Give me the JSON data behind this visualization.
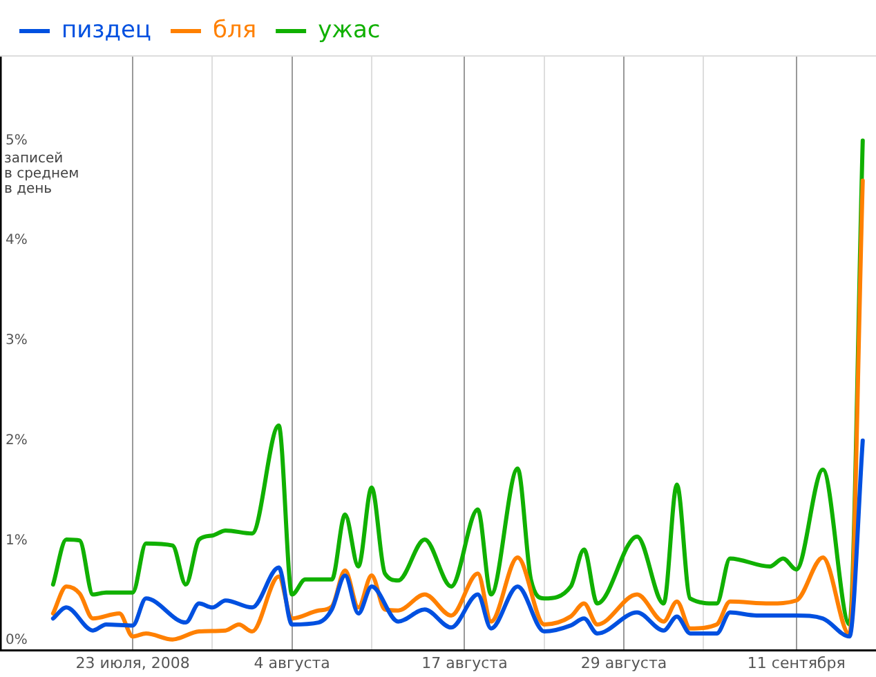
{
  "chart_data": {
    "type": "line",
    "ylabel": "записей\nв среднем\nв день",
    "xlim": [
      "2008-07-13",
      "2008-09-17"
    ],
    "xticks": [
      {
        "value": "2008-07-23",
        "label": "23 июля, 2008"
      },
      {
        "value": "2008-07-29",
        "label": null
      },
      {
        "value": "2008-08-04",
        "label": "4 августа"
      },
      {
        "value": "2008-08-10",
        "label": null
      },
      {
        "value": "2008-08-17",
        "label": "17 августа"
      },
      {
        "value": "2008-08-23",
        "label": null
      },
      {
        "value": "2008-08-29",
        "label": "29 августа"
      },
      {
        "value": "2008-09-04",
        "label": null
      },
      {
        "value": "2008-09-11",
        "label": "11 сентября"
      }
    ],
    "ylim": [
      -0.1,
      5.84
    ],
    "yticks": [
      {
        "value": 0,
        "label": "0%"
      },
      {
        "value": 1,
        "label": "1%"
      },
      {
        "value": 2,
        "label": "2%"
      },
      {
        "value": 3,
        "label": "3%"
      },
      {
        "value": 4,
        "label": "4%"
      },
      {
        "value": 5,
        "label": "5%"
      }
    ],
    "grid": "x",
    "legend": "top left",
    "marker": "none",
    "line_style": "solid",
    "series": [
      {
        "name": "пиздец",
        "color": "#0050e0",
        "x": [
          "2008-07-17",
          "2008-07-18",
          "2008-07-20",
          "2008-07-21",
          "2008-07-23",
          "2008-07-24",
          "2008-07-27",
          "2008-07-28",
          "2008-07-29",
          "2008-07-30",
          "2008-08-01",
          "2008-08-03",
          "2008-08-04",
          "2008-08-06",
          "2008-08-07",
          "2008-08-08",
          "2008-08-09",
          "2008-08-10",
          "2008-08-12",
          "2008-08-14",
          "2008-08-16",
          "2008-08-18",
          "2008-08-19",
          "2008-08-21",
          "2008-08-23",
          "2008-08-25",
          "2008-08-26",
          "2008-08-27",
          "2008-08-30",
          "2008-09-01",
          "2008-09-02",
          "2008-09-03",
          "2008-09-05",
          "2008-09-06",
          "2008-09-08",
          "2008-09-11",
          "2008-09-13",
          "2008-09-15",
          "2008-09-16"
        ],
        "values": [
          0.22,
          0.33,
          0.1,
          0.16,
          0.15,
          0.42,
          0.18,
          0.37,
          0.33,
          0.4,
          0.33,
          0.73,
          0.16,
          0.18,
          0.31,
          0.65,
          0.27,
          0.54,
          0.19,
          0.31,
          0.13,
          0.46,
          0.12,
          0.54,
          0.09,
          0.15,
          0.22,
          0.07,
          0.28,
          0.1,
          0.24,
          0.07,
          0.07,
          0.28,
          0.25,
          0.25,
          0.22,
          0.04,
          2.0
        ]
      },
      {
        "name": "бля",
        "color": "#ff8000",
        "x": [
          "2008-07-17",
          "2008-07-18",
          "2008-07-19",
          "2008-07-20",
          "2008-07-22",
          "2008-07-23",
          "2008-07-24",
          "2008-07-26",
          "2008-07-28",
          "2008-07-30",
          "2008-07-31",
          "2008-08-01",
          "2008-08-03",
          "2008-08-04",
          "2008-08-06",
          "2008-08-07",
          "2008-08-08",
          "2008-08-09",
          "2008-08-10",
          "2008-08-11",
          "2008-08-12",
          "2008-08-14",
          "2008-08-16",
          "2008-08-18",
          "2008-08-19",
          "2008-08-21",
          "2008-08-23",
          "2008-08-25",
          "2008-08-26",
          "2008-08-27",
          "2008-08-30",
          "2008-09-01",
          "2008-09-02",
          "2008-09-03",
          "2008-09-05",
          "2008-09-06",
          "2008-09-09",
          "2008-09-11",
          "2008-09-13",
          "2008-09-15",
          "2008-09-16"
        ],
        "values": [
          0.27,
          0.54,
          0.47,
          0.22,
          0.27,
          0.04,
          0.07,
          0.01,
          0.09,
          0.1,
          0.16,
          0.09,
          0.64,
          0.22,
          0.3,
          0.34,
          0.7,
          0.33,
          0.65,
          0.31,
          0.3,
          0.46,
          0.25,
          0.67,
          0.19,
          0.83,
          0.16,
          0.24,
          0.37,
          0.16,
          0.46,
          0.19,
          0.39,
          0.12,
          0.16,
          0.39,
          0.37,
          0.4,
          0.83,
          0.06,
          4.6
        ]
      },
      {
        "name": "ужас",
        "color": "#10b000",
        "x": [
          "2008-07-17",
          "2008-07-18",
          "2008-07-19",
          "2008-07-20",
          "2008-07-21",
          "2008-07-23",
          "2008-07-24",
          "2008-07-26",
          "2008-07-27",
          "2008-07-28",
          "2008-07-29",
          "2008-07-30",
          "2008-08-01",
          "2008-08-03",
          "2008-08-04",
          "2008-08-05",
          "2008-08-07",
          "2008-08-08",
          "2008-08-09",
          "2008-08-10",
          "2008-08-11",
          "2008-08-12",
          "2008-08-14",
          "2008-08-16",
          "2008-08-18",
          "2008-08-19",
          "2008-08-21",
          "2008-08-22",
          "2008-08-23",
          "2008-08-25",
          "2008-08-26",
          "2008-08-27",
          "2008-08-30",
          "2008-09-01",
          "2008-09-02",
          "2008-09-03",
          "2008-09-05",
          "2008-09-06",
          "2008-09-09",
          "2008-09-10",
          "2008-09-11",
          "2008-09-13",
          "2008-09-15",
          "2008-09-16"
        ],
        "values": [
          0.56,
          1.01,
          1.0,
          0.46,
          0.48,
          0.48,
          0.97,
          0.95,
          0.56,
          1.01,
          1.05,
          1.1,
          1.07,
          2.15,
          0.46,
          0.61,
          0.61,
          1.26,
          0.74,
          1.53,
          0.67,
          0.6,
          1.01,
          0.54,
          1.31,
          0.46,
          1.72,
          0.61,
          0.42,
          0.54,
          0.91,
          0.37,
          1.04,
          0.37,
          1.56,
          0.42,
          0.37,
          0.82,
          0.74,
          0.82,
          0.71,
          1.71,
          0.16,
          5.0
        ]
      }
    ]
  }
}
